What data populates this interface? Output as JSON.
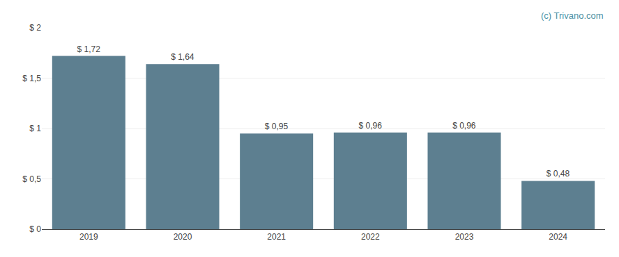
{
  "chart_data": {
    "type": "bar",
    "categories": [
      "2019",
      "2020",
      "2021",
      "2022",
      "2023",
      "2024"
    ],
    "values": [
      1.72,
      1.64,
      0.95,
      0.96,
      0.96,
      0.48
    ],
    "value_labels": [
      "$ 1,72",
      "$ 1,64",
      "$ 0,95",
      "$ 0,96",
      "$ 0,96",
      "$ 0,48"
    ],
    "data_labels": true,
    "color": "#5d7f90",
    "ylim": [
      0,
      2.0
    ],
    "yticks": [
      {
        "value": 0,
        "label": "$ 0"
      },
      {
        "value": 0.5,
        "label": "$ 0,5"
      },
      {
        "value": 1.0,
        "label": "$ 1"
      },
      {
        "value": 1.5,
        "label": "$ 1,5"
      },
      {
        "value": 2.0,
        "label": "$ 2"
      }
    ],
    "grid": true,
    "annotations": [
      {
        "text": "(c) Trivano.com",
        "color": "#4a90a4"
      }
    ]
  }
}
